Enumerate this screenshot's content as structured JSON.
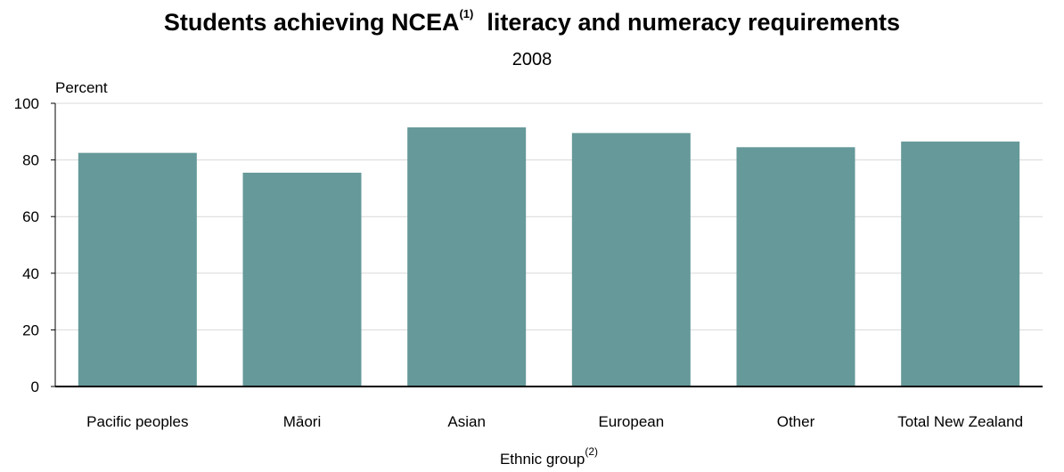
{
  "chart_data": {
    "type": "bar",
    "title_main": "Students achieving NCEA",
    "title_sup": "(1)",
    "title_rest": "literacy and numeracy requirements",
    "subtitle": "2008",
    "ylabel": "Percent",
    "xlabel": "Ethnic group",
    "xlabel_sup": "(2)",
    "categories": [
      "Pacific peoples",
      "Māori",
      "Asian",
      "European",
      "Other",
      "Total New Zealand"
    ],
    "values": [
      82.5,
      75.5,
      91.5,
      89.5,
      84.5,
      86.5
    ],
    "ylim": [
      0,
      100
    ],
    "yticks": [
      0,
      20,
      40,
      60,
      80,
      100
    ],
    "grid": true,
    "bar_color": "#669999",
    "grid_color": "#d9d9d9"
  }
}
